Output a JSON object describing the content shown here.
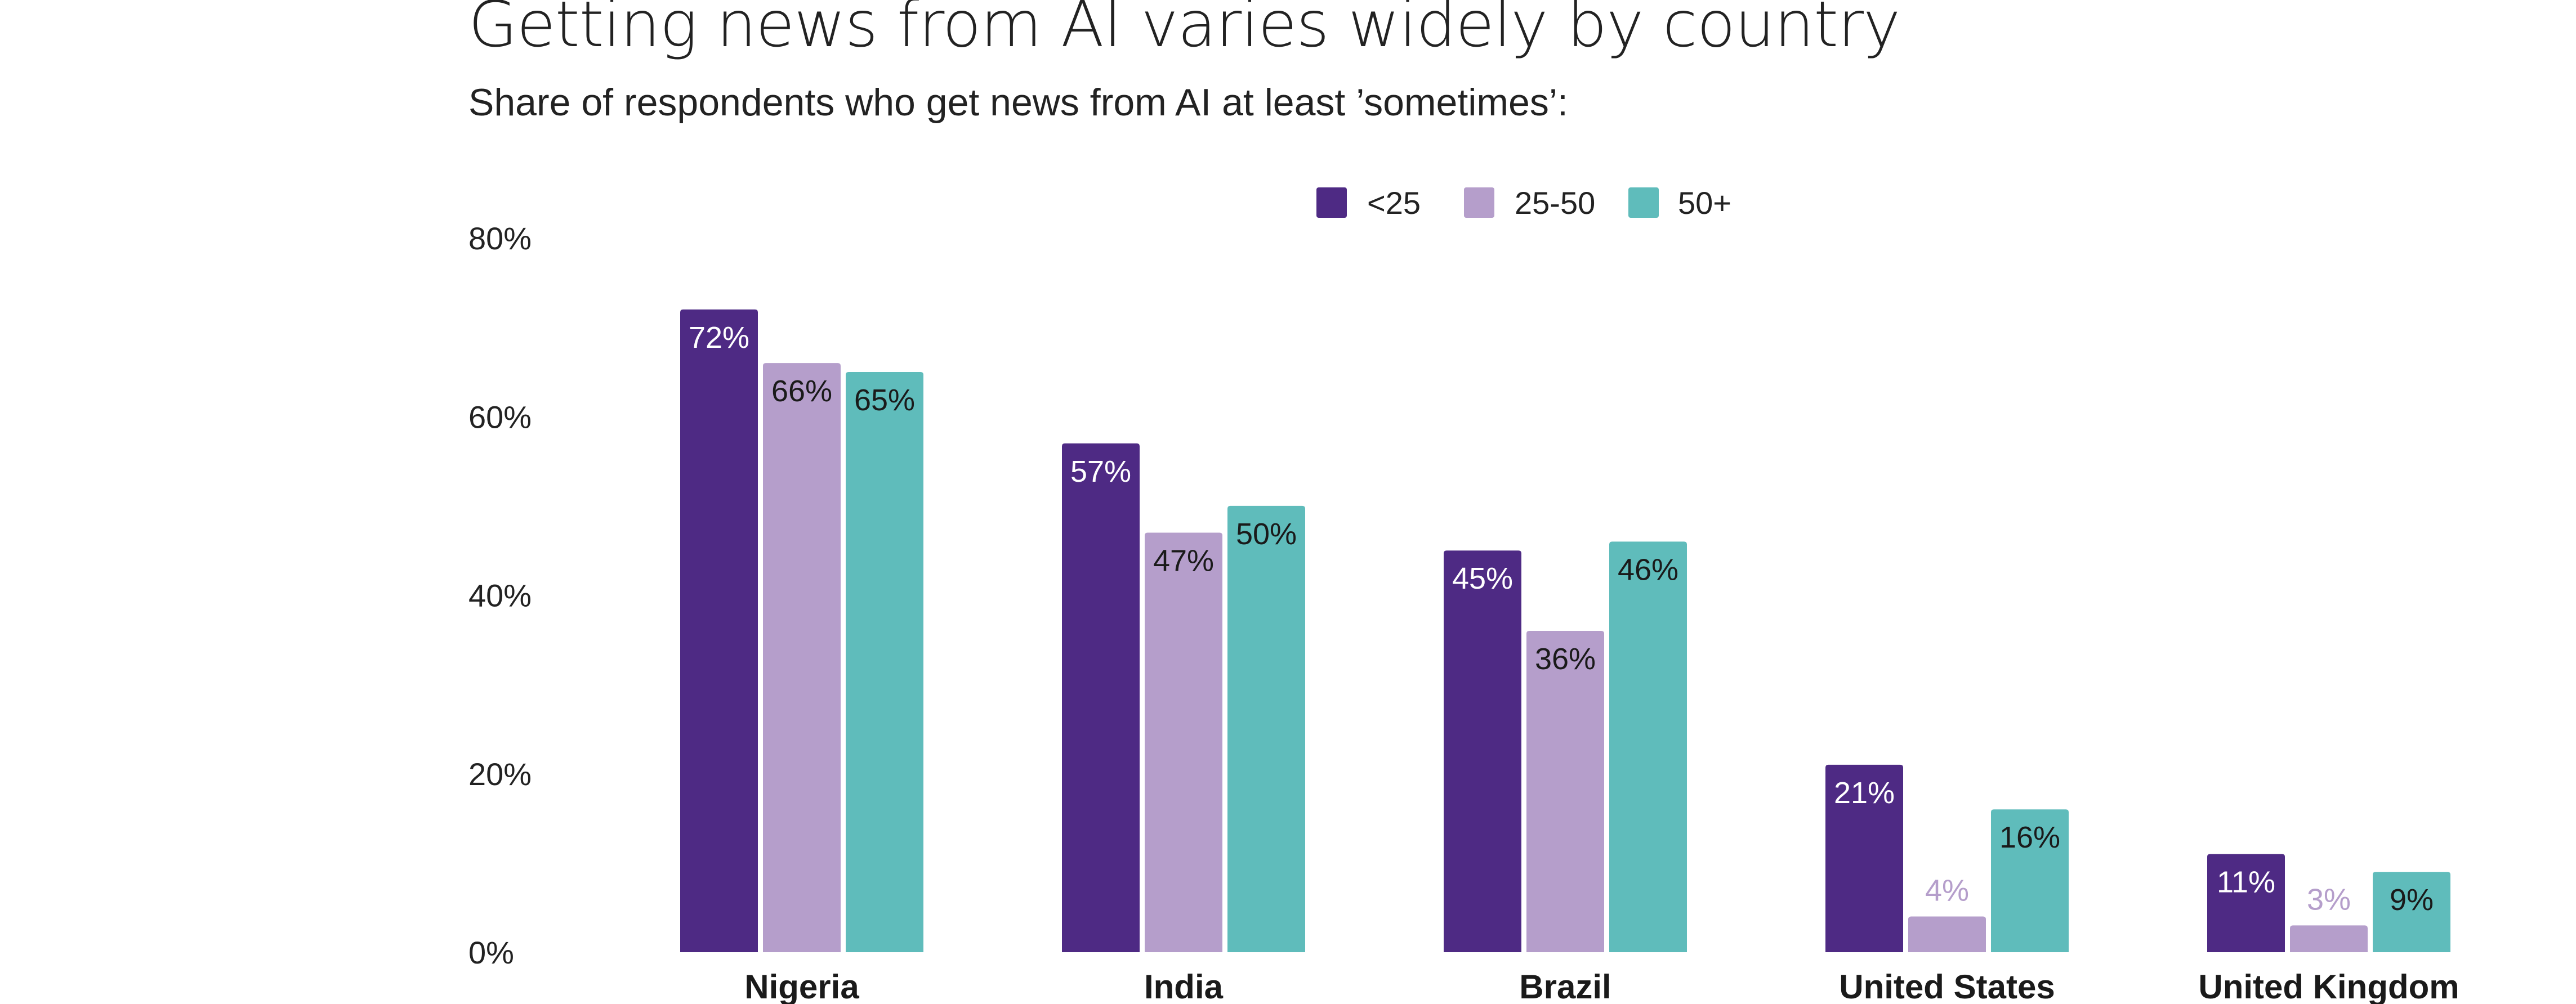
{
  "chart_data": {
    "type": "bar",
    "title": "Getting news from AI varies widely by country",
    "subtitle": "Share of respondents who get news from AI at least ’sometimes’:",
    "xlabel": "",
    "ylabel": "",
    "ylim": [
      0,
      80
    ],
    "yticks": [
      0,
      20,
      40,
      60,
      80
    ],
    "ytick_labels": [
      "0%",
      "20%",
      "40%",
      "60%",
      "80%"
    ],
    "grid": false,
    "legend_position": "top-center",
    "categories": [
      "Nigeria",
      "India",
      "Brazil",
      "United States",
      "United Kingdom"
    ],
    "series": [
      {
        "name": "<25",
        "color": "#4e2a84",
        "label_color": "#ffffff",
        "values": [
          72,
          57,
          45,
          21,
          11
        ],
        "labels": [
          "72%",
          "57%",
          "45%",
          "21%",
          "11%"
        ]
      },
      {
        "name": "25-50",
        "color": "#b59ecb",
        "label_color": "#1a1a1a",
        "values": [
          66,
          47,
          36,
          4,
          3
        ],
        "labels": [
          "66%",
          "47%",
          "36%",
          "4%",
          "3%"
        ]
      },
      {
        "name": "50+",
        "color": "#5fbcbb",
        "label_color": "#1a1a1a",
        "values": [
          65,
          50,
          46,
          16,
          9
        ],
        "labels": [
          "65%",
          "50%",
          "46%",
          "16%",
          "9%"
        ]
      }
    ]
  }
}
